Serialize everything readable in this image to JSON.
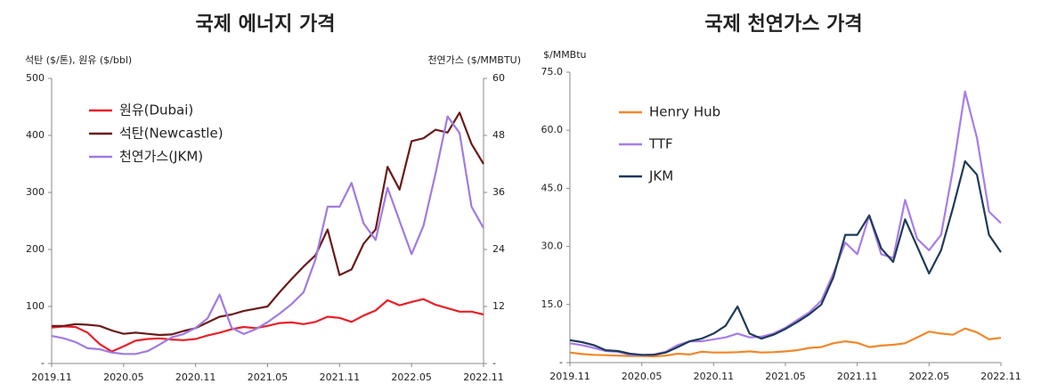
{
  "chart_data": [
    {
      "type": "line",
      "title": "국제 에너지 가격",
      "ylabel": "석탄 ($/톤), 원유 ($/bbl)",
      "y2label": "천연가스 ($/MMBTU)",
      "categories": [
        "2019.11",
        null,
        null,
        null,
        null,
        null,
        "2020.05",
        null,
        null,
        null,
        null,
        null,
        "2020.11",
        null,
        null,
        null,
        null,
        null,
        "2021.05",
        null,
        null,
        null,
        null,
        null,
        "2021.11",
        null,
        null,
        null,
        null,
        null,
        "2022.05",
        null,
        null,
        null,
        null,
        null,
        "2022.11"
      ],
      "ylim": [
        0,
        500
      ],
      "yticks": [
        {
          "value": 0,
          "label": "-"
        },
        100,
        200,
        300,
        400,
        500
      ],
      "y2lim": [
        0,
        60
      ],
      "y2ticks": [
        {
          "value": 0,
          "label": "-"
        },
        12,
        24,
        36,
        48,
        60
      ],
      "legend": "upper left",
      "series": [
        {
          "name": "원유(Dubai)",
          "color": "#e8202a",
          "values": [
            63,
            65,
            64,
            54,
            34,
            21,
            30,
            40,
            43,
            44,
            42,
            41,
            43,
            49,
            54,
            60,
            64,
            62,
            66,
            71,
            72,
            69,
            73,
            82,
            80,
            73,
            84,
            93,
            111,
            102,
            108,
            113,
            103,
            97,
            91,
            91,
            86
          ]
        },
        {
          "name": "석탄(Newcastle)",
          "color": "#6b1b1b",
          "values": [
            66,
            66,
            69,
            68,
            66,
            58,
            52,
            54,
            52,
            50,
            51,
            57,
            62,
            72,
            82,
            86,
            92,
            96,
            100,
            125,
            148,
            170,
            190,
            235,
            155,
            165,
            210,
            235,
            345,
            305,
            390,
            395,
            410,
            405,
            440,
            385,
            350
          ]
        },
        {
          "name": "천연가스(JKM)",
          "color": "#a07be0",
          "axis": "y2",
          "values": [
            5.8,
            5.3,
            4.5,
            3.2,
            3,
            2.3,
            2,
            2,
            2.6,
            4,
            5.5,
            6.2,
            7.5,
            9.5,
            14.5,
            7.5,
            6.2,
            7.2,
            8.7,
            10.5,
            12.5,
            15,
            22,
            33,
            33,
            38,
            29.5,
            26,
            37,
            30,
            23,
            29,
            40,
            52,
            48.5,
            33,
            28.5
          ]
        }
      ]
    },
    {
      "type": "line",
      "title": "국제 천연가스 가격",
      "ylabel": "$/MMBtu",
      "categories": [
        "2019.11",
        null,
        null,
        null,
        null,
        null,
        "2020.05",
        null,
        null,
        null,
        null,
        null,
        "2020.11",
        null,
        null,
        null,
        null,
        null,
        "2021.05",
        null,
        null,
        null,
        null,
        null,
        "2021.11",
        null,
        null,
        null,
        null,
        null,
        "2022.05",
        null,
        null,
        null,
        null,
        null,
        "2022.11"
      ],
      "ylim": [
        0,
        75
      ],
      "yticks": [
        {
          "value": 0,
          "label": "-"
        },
        {
          "value": 15,
          "label": "15.0"
        },
        {
          "value": 30,
          "label": "30.0"
        },
        {
          "value": 45,
          "label": "45.0"
        },
        {
          "value": 60,
          "label": "60.0"
        },
        {
          "value": 75,
          "label": "75.0"
        }
      ],
      "legend": "upper left",
      "series": [
        {
          "name": "Henry Hub",
          "color": "#f0882a",
          "values": [
            2.6,
            2.2,
            2,
            1.9,
            1.8,
            1.7,
            1.7,
            1.6,
            1.8,
            2.3,
            2.1,
            2.8,
            2.6,
            2.6,
            2.7,
            2.9,
            2.6,
            2.7,
            2.9,
            3.2,
            3.8,
            4,
            5,
            5.5,
            5.1,
            4,
            4.4,
            4.6,
            5,
            6.5,
            8,
            7.5,
            7.2,
            8.8,
            7.8,
            6,
            6.4
          ]
        },
        {
          "name": "TTF",
          "color": "#a77de8",
          "values": [
            5,
            4.5,
            3.8,
            3,
            2.8,
            2,
            1.9,
            2.1,
            2.8,
            4.5,
            5.5,
            5.5,
            6,
            6.5,
            7.5,
            6.5,
            6.7,
            7.5,
            9,
            11,
            13,
            16,
            23,
            31,
            28,
            38,
            28,
            27,
            42,
            32,
            29,
            33,
            50,
            70,
            58,
            39,
            36
          ]
        },
        {
          "name": "JKM",
          "color": "#1f3b5a",
          "values": [
            5.8,
            5.3,
            4.5,
            3.2,
            3,
            2.3,
            2,
            2,
            2.6,
            4,
            5.5,
            6.2,
            7.5,
            9.5,
            14.5,
            7.5,
            6.2,
            7.2,
            8.7,
            10.5,
            12.5,
            15,
            22,
            33,
            33,
            38,
            29.5,
            26,
            37,
            30,
            23,
            29,
            40,
            52,
            48.5,
            33,
            28.5
          ]
        }
      ]
    }
  ]
}
